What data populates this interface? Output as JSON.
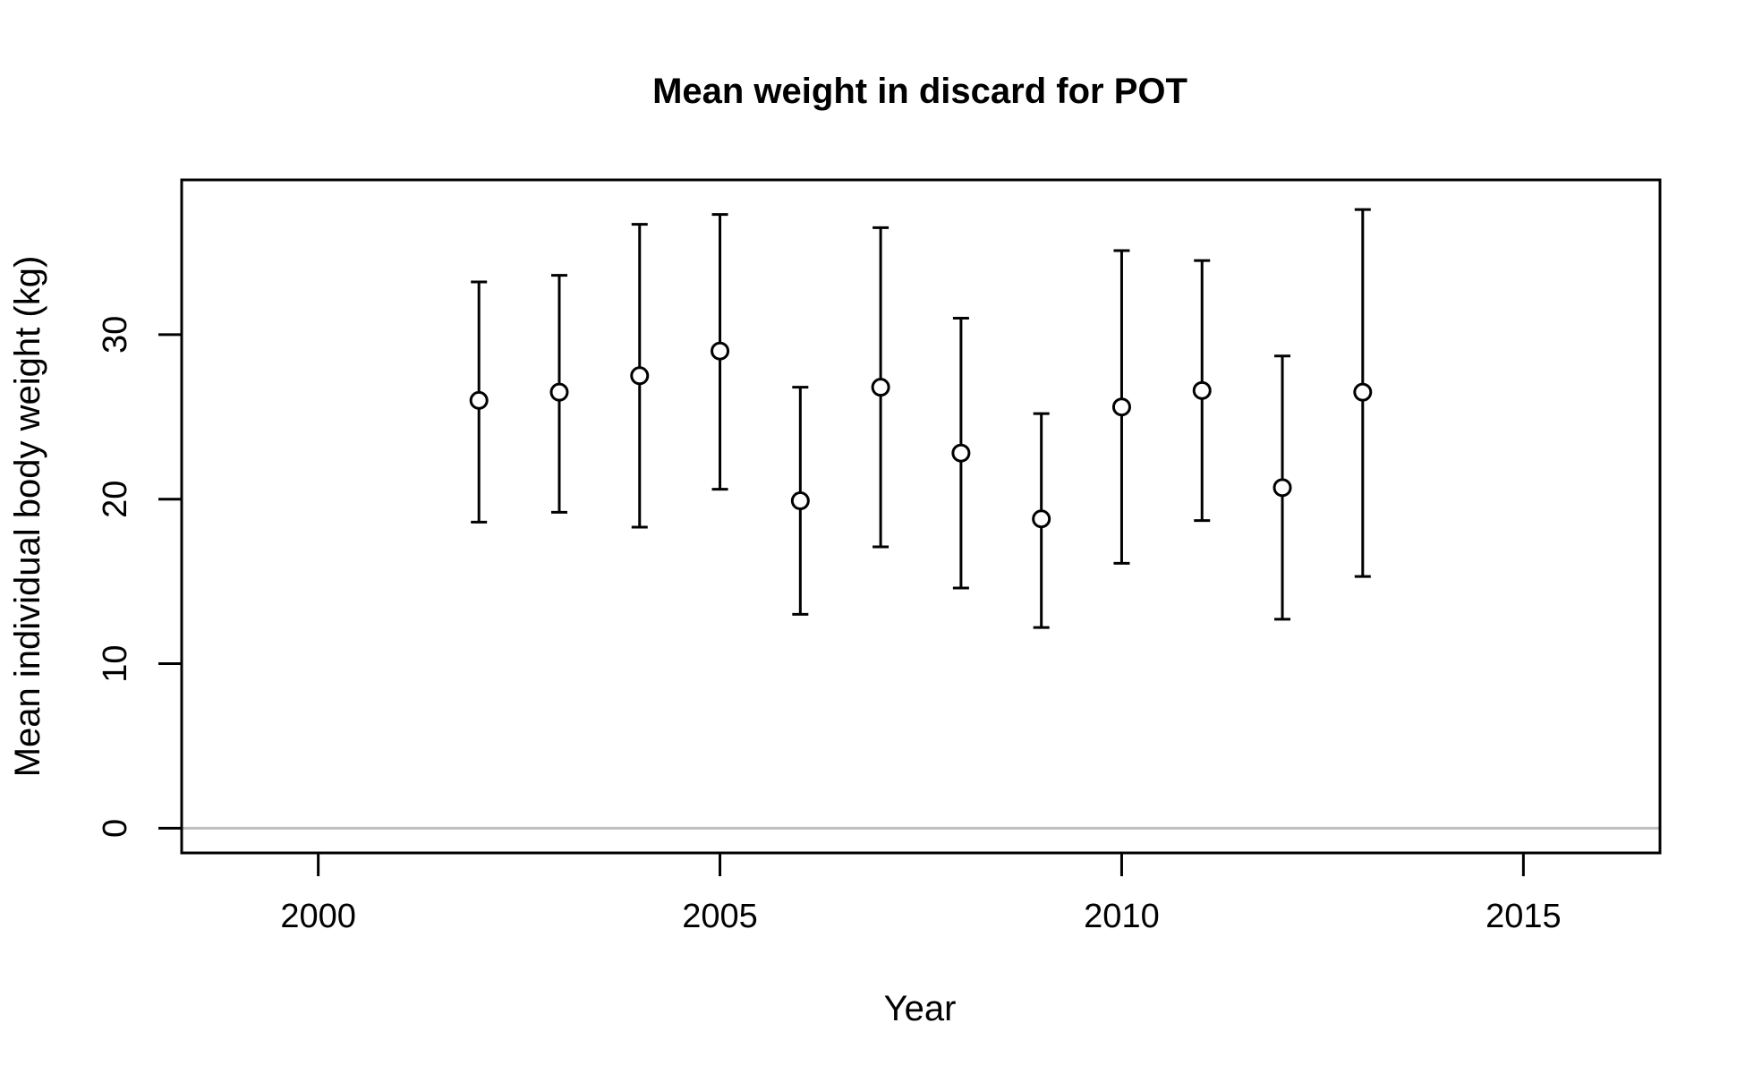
{
  "chart_data": {
    "type": "scatter",
    "title": "Mean weight in discard for POT",
    "xlabel": "Year",
    "ylabel": "Mean individual body weight (kg)",
    "xlim": [
      1998.3,
      2016.7
    ],
    "ylim": [
      -1.5,
      39.4
    ],
    "x_ticks": [
      2000,
      2005,
      2010,
      2015
    ],
    "y_ticks": [
      0,
      10,
      20,
      30
    ],
    "grid": false,
    "legend": "none",
    "reference_line": {
      "y": 0,
      "color": "#bebebe"
    },
    "colors": {
      "marks": "#000000",
      "reference_line": "#bebebe",
      "background": "#ffffff"
    },
    "series": [
      {
        "x": [
          2002,
          2003,
          2004,
          2005,
          2006,
          2007,
          2008,
          2009,
          2010,
          2011,
          2012,
          2013
        ],
        "y": [
          26.0,
          26.5,
          27.5,
          29.0,
          19.9,
          26.8,
          22.8,
          18.8,
          25.6,
          26.6,
          20.7,
          26.5
        ],
        "lower": [
          18.6,
          19.2,
          18.3,
          20.6,
          13.0,
          17.1,
          14.6,
          12.2,
          16.1,
          18.7,
          12.7,
          15.3
        ],
        "upper": [
          33.2,
          33.6,
          36.7,
          37.3,
          26.8,
          36.5,
          31.0,
          25.2,
          35.1,
          34.5,
          28.7,
          37.6
        ]
      }
    ]
  }
}
